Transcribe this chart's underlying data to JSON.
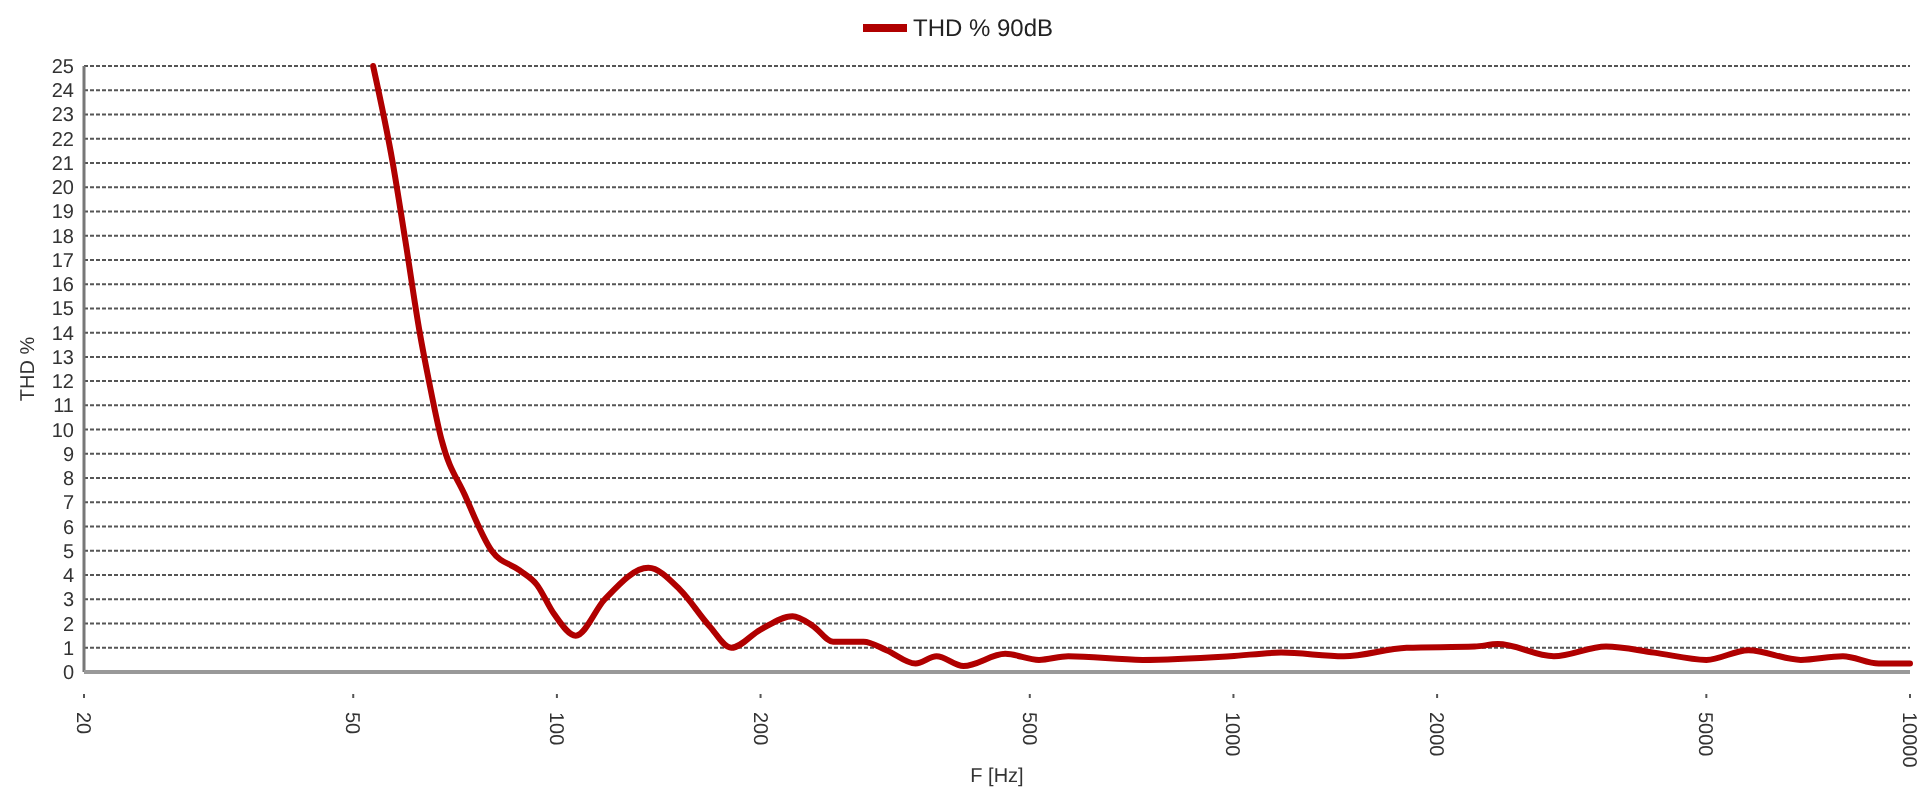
{
  "chart_data": {
    "type": "line",
    "xlabel": "F [Hz]",
    "ylabel": "THD %",
    "log": "x",
    "grid": "y",
    "legend": "top",
    "marker": "none",
    "line_style": "solid",
    "xlim": [
      20,
      10000
    ],
    "xticks": [
      20,
      50,
      100,
      200,
      500,
      1000,
      2000,
      5000,
      10000
    ],
    "ylim": [
      0,
      25
    ],
    "yticks": [
      0,
      1,
      2,
      3,
      4,
      5,
      6,
      7,
      8,
      9,
      10,
      11,
      12,
      13,
      14,
      15,
      16,
      17,
      18,
      19,
      20,
      21,
      22,
      23,
      24,
      25
    ],
    "series": [
      {
        "name": "THD % 90dB",
        "color": "#b00000",
        "x": [
          53.5,
          57.2,
          59.7,
          62.7,
          64.7,
          67.5,
          73.1,
          80.1,
          88,
          93.4,
          99,
          106.6,
          117.7,
          136.5,
          152,
          168,
          181,
          200,
          223,
          239,
          256,
          284,
          307,
          339,
          364,
          399,
          460,
          516,
          570,
          734,
          990,
          1176,
          1456,
          1803,
          2273,
          2458,
          2976,
          3554,
          4186,
          5000,
          5770,
          6896,
          7958,
          8990,
          10000
        ],
        "values": [
          25,
          21,
          17.8,
          14,
          12,
          9.6,
          7.3,
          5,
          4.2,
          3.6,
          2.4,
          1.5,
          3,
          4.3,
          3.4,
          1.9,
          1,
          1.75,
          2.3,
          1.9,
          1.25,
          1.25,
          0.9,
          0.35,
          0.65,
          0.25,
          0.75,
          0.5,
          0.65,
          0.5,
          0.65,
          0.8,
          0.65,
          1,
          1.05,
          1.15,
          0.65,
          1.05,
          0.8,
          0.5,
          0.9,
          0.5,
          0.65,
          0.35,
          0.35
        ]
      }
    ]
  }
}
